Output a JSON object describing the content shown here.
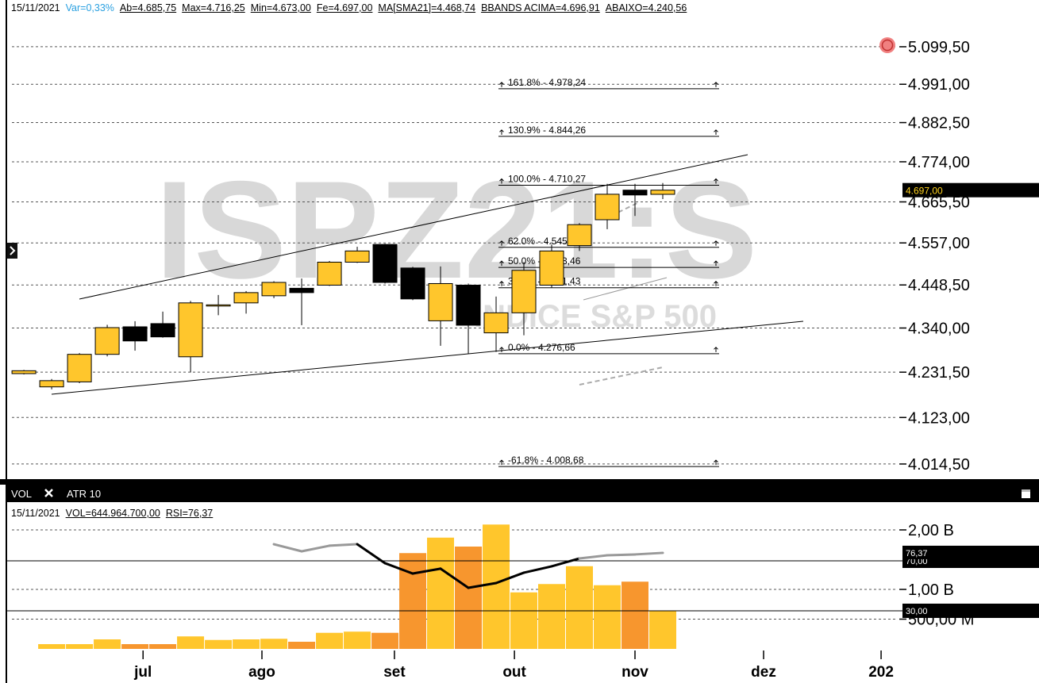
{
  "chart_data": {
    "type": "candlestick",
    "header": [
      "15/11/2021",
      "Var=0,33%",
      "Ab=4.685,75",
      "Max=4.716,25",
      "Min=4.673,00",
      "Fe=4.697,00",
      "MA[SMA21]=4.468,74",
      "BBANDS ACIMA=4.696,91",
      "ABAIXO=4.240,56"
    ],
    "watermark": "ISPZ21:S",
    "watermark_subtitle": "INDICE S&P 500",
    "log_scale": true,
    "up_color": "#ffc62c",
    "down_color": "#000000",
    "xlim": [
      -0.86,
      31.43
    ],
    "xticks": [
      {
        "value": 4.29,
        "label": "jul"
      },
      {
        "value": 8.57,
        "label": "ago"
      },
      {
        "value": 13.34,
        "label": "set"
      },
      {
        "value": 17.66,
        "label": "out"
      },
      {
        "value": 22,
        "label": "nov"
      },
      {
        "value": 26.63,
        "label": "dez"
      },
      {
        "value": 30.86,
        "label": "202"
      }
    ],
    "ylim": [
      3978,
      5190.6
    ],
    "yticks": [
      {
        "value": 5099.5,
        "label": "5.099,50"
      },
      {
        "value": 4991,
        "label": "4.991,00"
      },
      {
        "value": 4882.5,
        "label": "4.882,50"
      },
      {
        "value": 4774,
        "label": "4.774,00"
      },
      {
        "value": 4665.5,
        "label": "4.665,50"
      },
      {
        "value": 4557,
        "label": "4.557,00"
      },
      {
        "value": 4448.5,
        "label": "4.448,50"
      },
      {
        "value": 4340,
        "label": "4.340,00"
      },
      {
        "value": 4231.5,
        "label": "4.231,50"
      },
      {
        "value": 4123,
        "label": "4.123,00"
      },
      {
        "value": 4014.5,
        "label": "4.014,50"
      }
    ],
    "grid": true,
    "candles": [
      {
        "open": 4228,
        "high": 4237,
        "low": 4226,
        "close": 4235
      },
      {
        "open": 4196,
        "high": 4215,
        "low": 4190,
        "close": 4211
      },
      {
        "open": 4208,
        "high": 4278,
        "low": 4205,
        "close": 4275
      },
      {
        "open": 4275,
        "high": 4348,
        "low": 4270,
        "close": 4341
      },
      {
        "open": 4343,
        "high": 4357,
        "low": 4284,
        "close": 4308
      },
      {
        "open": 4351,
        "high": 4381,
        "low": 4316,
        "close": 4318
      },
      {
        "open": 4269,
        "high": 4408,
        "low": 4231,
        "close": 4403
      },
      {
        "open": 4397,
        "high": 4423,
        "low": 4372,
        "close": 4398
      },
      {
        "open": 4403,
        "high": 4433,
        "low": 4376,
        "close": 4429
      },
      {
        "open": 4421,
        "high": 4458,
        "low": 4415,
        "close": 4455
      },
      {
        "open": 4440,
        "high": 4465,
        "low": 4347,
        "close": 4429
      },
      {
        "open": 4448,
        "high": 4510,
        "low": 4446,
        "close": 4507
      },
      {
        "open": 4507,
        "high": 4547,
        "low": 4505,
        "close": 4536
      },
      {
        "open": 4553,
        "high": 4555,
        "low": 4452,
        "close": 4455
      },
      {
        "open": 4492,
        "high": 4495,
        "low": 4410,
        "close": 4413
      },
      {
        "open": 4358,
        "high": 4496,
        "low": 4296,
        "close": 4452
      },
      {
        "open": 4448,
        "high": 4452,
        "low": 4277,
        "close": 4347
      },
      {
        "open": 4328,
        "high": 4419,
        "low": 4281,
        "close": 4378
      },
      {
        "open": 4378,
        "high": 4507,
        "low": 4322,
        "close": 4486
      },
      {
        "open": 4448,
        "high": 4553,
        "low": 4442,
        "close": 4536
      },
      {
        "open": 4550,
        "high": 4609,
        "low": 4536,
        "close": 4605
      },
      {
        "open": 4618,
        "high": 4714,
        "low": 4593,
        "close": 4686
      },
      {
        "open": 4697,
        "high": 4714,
        "low": 4628,
        "close": 4684
      },
      {
        "open": 4685.75,
        "high": 4716.25,
        "low": 4673,
        "close": 4697
      }
    ],
    "last_price": {
      "value": 4697,
      "label": "4.697,00"
    },
    "fibonacci": [
      {
        "value": 4978.24,
        "label": "161.8% - 4.978,24"
      },
      {
        "value": 4844.26,
        "label": "130.9% - 4.844,26"
      },
      {
        "value": 4710.27,
        "label": "100.0% - 4.710,27"
      },
      {
        "value": 4545.5,
        "label": "62.0% - 4.545,50"
      },
      {
        "value": 4493.46,
        "label": "50.0% - 4.493,46"
      },
      {
        "value": 4441.43,
        "label": "38.2% - 4.441,43"
      },
      {
        "value": 4276.66,
        "label": "0.0% - 4.276,66"
      },
      {
        "value": 4008.68,
        "label": "-61.8% - 4.008,68"
      }
    ],
    "lower_tabs": [
      "VOL",
      "ATR 10"
    ],
    "lower_header": [
      "15/11/2021",
      "VOL=644.964.700,00",
      "RSI=76,37"
    ],
    "volume": {
      "name": "VOL",
      "up_color": "#ffc62c",
      "down_color": "#f7962e",
      "values": [
        null,
        0.08,
        0.08,
        0.16,
        0.08,
        0.08,
        0.21,
        0.15,
        0.16,
        0.17,
        0.12,
        0.27,
        0.29,
        0.27,
        1.61,
        1.87,
        1.72,
        2.09,
        0.95,
        1.09,
        1.39,
        1.07,
        1.13,
        0.645
      ]
    },
    "vol_ylim": [
      0,
      2.44
    ],
    "vol_yticks": [
      {
        "value": 2,
        "label": "2,00 B"
      },
      {
        "value": 1,
        "label": "1,00 B"
      },
      {
        "value": 0.5,
        "label": "500,00 M"
      }
    ],
    "rsi": {
      "name": "RSI",
      "color": "#999999",
      "low_color": "#000000",
      "values": [
        null,
        null,
        null,
        null,
        null,
        null,
        null,
        null,
        null,
        83.3,
        77.6,
        82.1,
        83.3,
        68.1,
        59.8,
        63.7,
        48.4,
        52.2,
        60.5,
        65.6,
        71.9,
        74.4,
        75.1,
        76.37
      ]
    },
    "rsi_ylim": [
      -0.5,
      115.7
    ],
    "rsi_levels": [
      {
        "value": 30,
        "label": "30,00"
      },
      {
        "value": 70,
        "label": "70,00"
      }
    ],
    "rsi_last": {
      "value": 76.37,
      "label": "76,37"
    }
  }
}
